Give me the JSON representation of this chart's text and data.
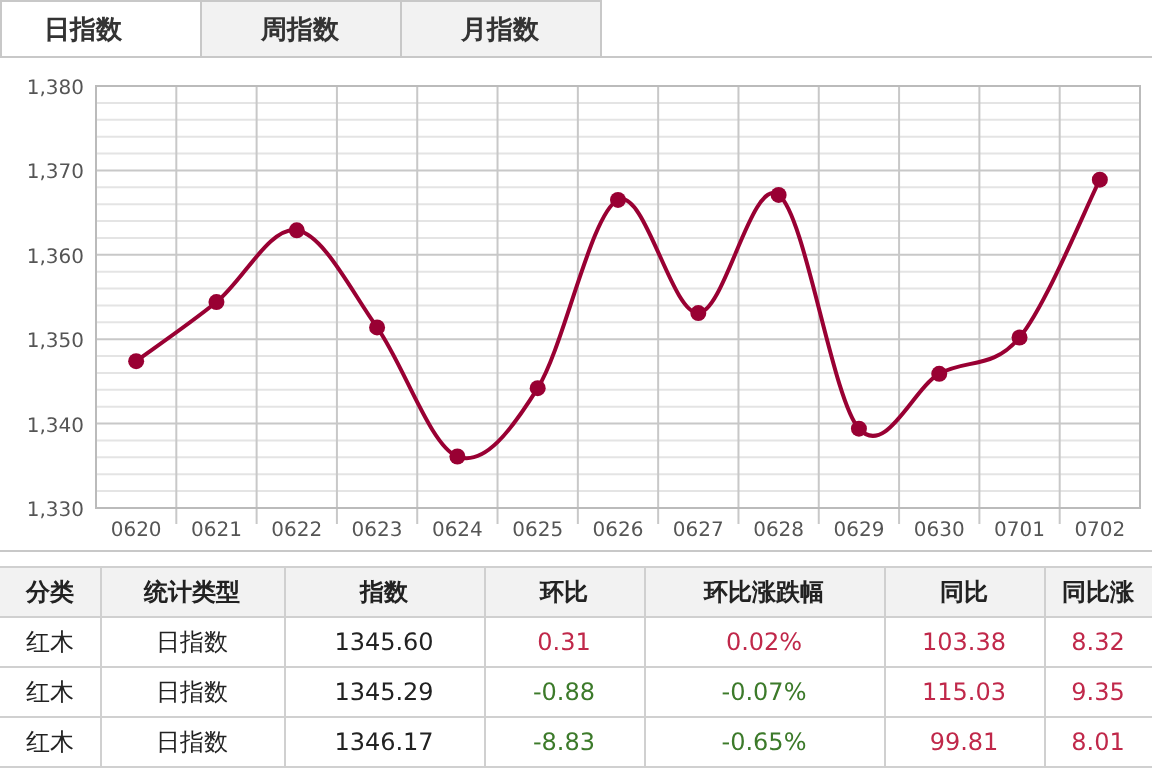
{
  "chart_data": [
    {
      "type": "line",
      "annotations": [
        "日指数",
        "周指数",
        "月指数"
      ],
      "categories": [
        "0620",
        "0621",
        "0622",
        "0623",
        "0624",
        "0625",
        "0626",
        "0627",
        "0628",
        "0629",
        "0630",
        "0701",
        "0702"
      ],
      "values": [
        1347.4,
        1354.4,
        1362.9,
        1351.4,
        1336.1,
        1344.2,
        1366.5,
        1353.1,
        1367.1,
        1339.4,
        1345.9,
        1350.2,
        1368.9
      ],
      "color": "#990033",
      "marker": "circle",
      "grid": true,
      "ylim": [
        1330,
        1380
      ],
      "yticks": [
        {
          "value": 1330,
          "label": "1,330"
        },
        {
          "value": 1332,
          "label": null
        },
        {
          "value": 1334,
          "label": null
        },
        {
          "value": 1336,
          "label": null
        },
        {
          "value": 1338,
          "label": null
        },
        {
          "value": 1340,
          "label": "1,340"
        },
        {
          "value": 1342,
          "label": null
        },
        {
          "value": 1344,
          "label": null
        },
        {
          "value": 1346,
          "label": null
        },
        {
          "value": 1348,
          "label": null
        },
        {
          "value": 1350,
          "label": "1,350"
        },
        {
          "value": 1352,
          "label": null
        },
        {
          "value": 1354,
          "label": null
        },
        {
          "value": 1356,
          "label": null
        },
        {
          "value": 1358,
          "label": null
        },
        {
          "value": 1360,
          "label": "1,360"
        },
        {
          "value": 1362,
          "label": null
        },
        {
          "value": 1364,
          "label": null
        },
        {
          "value": 1366,
          "label": null
        },
        {
          "value": 1368,
          "label": null
        },
        {
          "value": 1370,
          "label": "1,370"
        },
        {
          "value": 1372,
          "label": null
        },
        {
          "value": 1374,
          "label": null
        },
        {
          "value": 1376,
          "label": null
        },
        {
          "value": 1378,
          "label": null
        },
        {
          "value": 1380,
          "label": "1,380"
        }
      ]
    },
    {
      "type": "other",
      "annotations": [
        "分类",
        "统计类型",
        "指数",
        "环比",
        "环比涨跌幅",
        "同比",
        "同比涨",
        "红木",
        "日指数",
        "1345.60",
        "0.31",
        "0.02%",
        "103.38",
        "8.32",
        "红木",
        "日指数",
        "1345.29",
        "-0.88",
        "-0.07%",
        "115.03",
        "9.35",
        "红木",
        "日指数",
        "1346.17",
        "-8.83",
        "-0.65%",
        "99.81",
        "8.01"
      ]
    }
  ]
}
